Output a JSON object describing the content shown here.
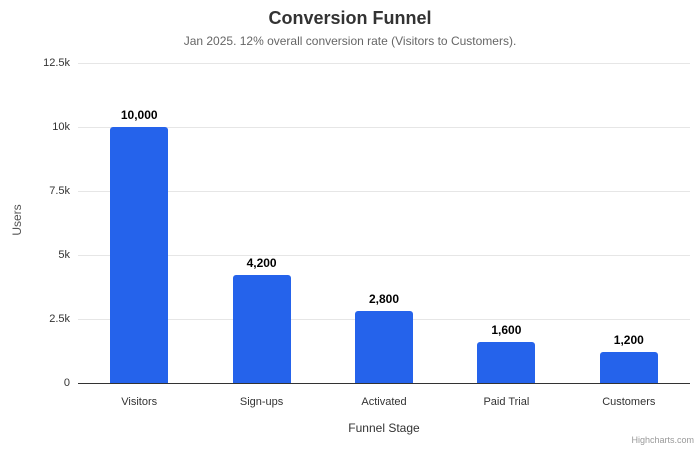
{
  "chart_data": {
    "type": "bar",
    "title": "Conversion Funnel",
    "subtitle": "Jan 2025. 12% overall conversion rate (Visitors to Customers).",
    "categories": [
      "Visitors",
      "Sign-ups",
      "Activated",
      "Paid Trial",
      "Customers"
    ],
    "values": [
      10000,
      4200,
      2800,
      1600,
      1200
    ],
    "data_labels": [
      "10,000",
      "4,200",
      "2,800",
      "1,600",
      "1,200"
    ],
    "xlabel": "Funnel Stage",
    "ylabel": "Users",
    "ylim": [
      0,
      12500
    ],
    "yticks": [
      {
        "value": 0,
        "label": "0"
      },
      {
        "value": 2500,
        "label": "2.5k"
      },
      {
        "value": 5000,
        "label": "5k"
      },
      {
        "value": 7500,
        "label": "7.5k"
      },
      {
        "value": 10000,
        "label": "10k"
      },
      {
        "value": 12500,
        "label": "12.5k"
      }
    ],
    "grid": true,
    "legend": false,
    "colors": {
      "bar": "#2563eb",
      "gridline": "#e6e6e6",
      "axis_line": "#333333",
      "data_label": "#000000",
      "credits_text": "#999999"
    }
  },
  "credits": {
    "label": "Highcharts.com"
  }
}
